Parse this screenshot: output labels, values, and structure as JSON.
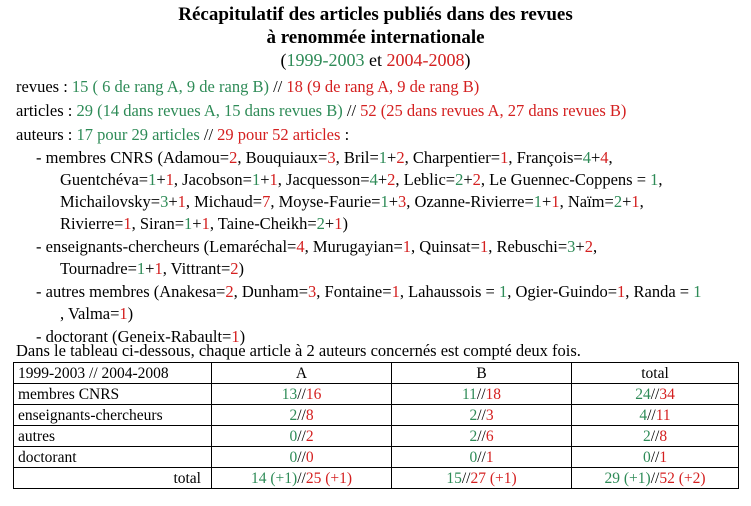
{
  "title_line1": "Récapitulatif des articles publiés dans des revues",
  "title_line2": "à renommée internationale",
  "period": {
    "open": "(",
    "green": "1999-2003",
    "mid": " et ",
    "red": "2004-2008",
    "close": ")"
  },
  "summary": {
    "revues": {
      "label": "revues : ",
      "green": "15 ( 6 de rang A, 9 de rang B)",
      "sep": " // ",
      "red": "18 (9 de rang A, 9 de rang B)"
    },
    "articles": {
      "label": "articles : ",
      "green": "29 (14 dans revues A, 15 dans revues B)",
      "sep": " // ",
      "red": "52 (25 dans revues A, 27 dans revues B)"
    },
    "auteurs": {
      "label": "auteurs : ",
      "green": "17 pour 29 articles",
      "sep": " // ",
      "red": "29 pour 52 articles",
      "end": " :"
    }
  },
  "groups": {
    "cnrs": {
      "prefix": "- membres CNRS (",
      "members": [
        {
          "name": "Adamou=",
          "a": "",
          "b": "2"
        },
        {
          "name": "Bouquiaux=",
          "a": "",
          "b": "3"
        },
        {
          "name": "Bril=",
          "a": "1",
          "b": "2"
        },
        {
          "name": "Charpentier=",
          "a": "",
          "b": "1"
        },
        {
          "name": "François=",
          "a": "4",
          "b": "4"
        },
        {
          "name": "Guentchéva=",
          "a": "1",
          "b": "1"
        },
        {
          "name": "Jacobson=",
          "a": "1",
          "b": "1"
        },
        {
          "name": "Jacquesson=",
          "a": "4",
          "b": "2"
        },
        {
          "name": "Leblic=",
          "a": "2",
          "b": "2"
        },
        {
          "name": "Le Guennec-Coppens = ",
          "a": "1",
          "b": ""
        },
        {
          "name": "Michailovsky=",
          "a": "3",
          "b": "1"
        },
        {
          "name": "Michaud=",
          "a": "",
          "b": "7"
        },
        {
          "name": "Moyse-Faurie=",
          "a": "1",
          "b": "3"
        },
        {
          "name": "Ozanne-Rivierre=",
          "a": "1",
          "b": "1"
        },
        {
          "name": "Naïm=",
          "a": "2",
          "b": "1"
        },
        {
          "name": "Rivierre=",
          "a": "",
          "b": "1"
        },
        {
          "name": "Siran=",
          "a": "1",
          "b": "1"
        },
        {
          "name": "Taine-Cheikh=",
          "a": "2",
          "b": "1"
        }
      ]
    },
    "ec": {
      "prefix": "- enseignants-chercheurs (",
      "members": [
        {
          "name": "Lemaréchal=",
          "a": "",
          "b": "4"
        },
        {
          "name": "Murugayian=",
          "a": "",
          "b": "1"
        },
        {
          "name": "Quinsat=",
          "a": "",
          "b": "1"
        },
        {
          "name": "Rebuschi=",
          "a": "3",
          "b": "2"
        },
        {
          "name": "Tournadre=",
          "a": "1",
          "b": "1"
        },
        {
          "name": "Vittrant=",
          "a": "",
          "b": "2"
        }
      ]
    },
    "autres": {
      "prefix": "- autres membres (",
      "members": [
        {
          "name": "Anakesa=",
          "a": "",
          "b": "2"
        },
        {
          "name": "Dunham=",
          "a": "",
          "b": "3"
        },
        {
          "name": "Fontaine=",
          "a": "",
          "b": "1"
        },
        {
          "name": "Lahaussois = ",
          "a": "1",
          "b": ""
        },
        {
          "name": "Ogier-Guindo=",
          "a": "",
          "b": "1"
        },
        {
          "name": "Randa = ",
          "a": "1",
          "b": ""
        },
        {
          "name": "Valma=",
          "a": "",
          "b": "1"
        }
      ]
    },
    "doctorant": {
      "prefix": "- doctorant (",
      "members": [
        {
          "name": "Geneix-Rabault=",
          "a": "",
          "b": "1"
        }
      ]
    }
  },
  "table_note": "Dans le tableau ci-dessous, chaque article à 2 auteurs concernés est compté deux fois.",
  "table": {
    "header": [
      "1999-2003 // 2004-2008",
      "A",
      "B",
      "total"
    ],
    "rows": [
      {
        "label": "membres CNRS",
        "cells": [
          {
            "g": "13",
            "r": "16"
          },
          {
            "g": "11",
            "r": "18"
          },
          {
            "g": "24",
            "r": "34"
          }
        ]
      },
      {
        "label": "enseignants-chercheurs",
        "cells": [
          {
            "g": "2",
            "r": "8"
          },
          {
            "g": "2",
            "r": "3"
          },
          {
            "g": "4",
            "r": "11"
          }
        ]
      },
      {
        "label": "autres",
        "cells": [
          {
            "g": "0",
            "r": "2"
          },
          {
            "g": "2",
            "r": "6"
          },
          {
            "g": "2",
            "r": "8"
          }
        ]
      },
      {
        "label": "doctorant",
        "cells": [
          {
            "g": "0",
            "r": "0"
          },
          {
            "g": "0",
            "r": "1"
          },
          {
            "g": "0",
            "r": "1"
          }
        ]
      }
    ],
    "total": {
      "label": "total",
      "cells": [
        {
          "g": "14 (+1)",
          "r": "25 (+1)"
        },
        {
          "g": "15",
          "r": "27 (+1)"
        },
        {
          "g": "29 (+1)",
          "r": "52 (+2)"
        }
      ]
    },
    "separator": "//"
  },
  "colors": {
    "green": "#2e8b57",
    "red": "#d42020"
  }
}
